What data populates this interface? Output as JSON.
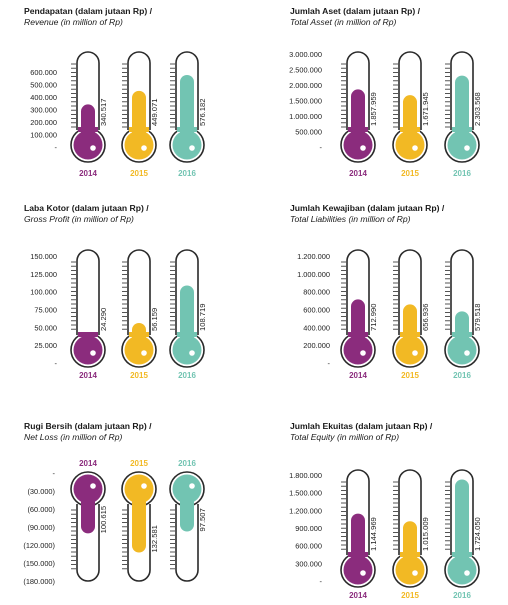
{
  "colors": {
    "2014": "#8b2c7d",
    "2015": "#f2b924",
    "2016": "#72c4b2",
    "outline": "#2a2a2a"
  },
  "chart_data": [
    {
      "type": "bar",
      "title": "Pendapatan (dalam jutaan Rp) /",
      "subtitle": "Revenue (in million of Rp)",
      "categories": [
        "2014",
        "2015",
        "2016"
      ],
      "values": [
        340517,
        449071,
        576182
      ],
      "value_labels": [
        "340.517",
        "449.071",
        "576.182"
      ],
      "yticks": [
        "600.000",
        "500.000",
        "400.000",
        "300.000",
        "200.000",
        "100.000",
        "-"
      ],
      "ylim": [
        0,
        600000
      ]
    },
    {
      "type": "bar",
      "title": "Jumlah Aset (dalam jutaan Rp) /",
      "subtitle": "Total Asset (in million of Rp)",
      "categories": [
        "2014",
        "2015",
        "2016"
      ],
      "values": [
        1857959,
        1671945,
        2303568
      ],
      "value_labels": [
        "1.857.959",
        "1.671.945",
        "2.303.568"
      ],
      "yticks": [
        "3.000.000",
        "2.500.000",
        "2.000.000",
        "1.500.000",
        "1.000.000",
        "500.000",
        "-"
      ],
      "ylim": [
        0,
        3000000
      ]
    },
    {
      "type": "bar",
      "title": "Laba Kotor (dalam jutaan Rp) /",
      "subtitle": "Gross Profit (in million of Rp)",
      "categories": [
        "2014",
        "2015",
        "2016"
      ],
      "values": [
        24290,
        56159,
        108719
      ],
      "value_labels": [
        "24.290",
        "56.159",
        "108.719"
      ],
      "yticks": [
        "150.000",
        "125.000",
        "100.000",
        "75.000",
        "50.000",
        "25.000",
        "-"
      ],
      "ylim": [
        0,
        150000
      ]
    },
    {
      "type": "bar",
      "title": "Jumlah Kewajiban (dalam jutaan Rp) /",
      "subtitle": "Total Liabilities (in million of Rp)",
      "categories": [
        "2014",
        "2015",
        "2016"
      ],
      "values": [
        712990,
        656936,
        579518
      ],
      "value_labels": [
        "712.990",
        "656.936",
        "579.518"
      ],
      "yticks": [
        "1.200.000",
        "1.000.000",
        "800.000",
        "600.000",
        "400.000",
        "200.000",
        "-"
      ],
      "ylim": [
        0,
        1200000
      ]
    },
    {
      "type": "bar",
      "title": "Rugi Bersih (dalam jutaan Rp) /",
      "subtitle": "Net Loss (in million of Rp)",
      "categories": [
        "2014",
        "2015",
        "2016"
      ],
      "values": [
        -100615,
        -132581,
        -97507
      ],
      "value_labels": [
        "100.615",
        "132.581",
        "97.507"
      ],
      "yticks": [
        "-",
        "(30.000)",
        "(60.000)",
        "(90.000)",
        "(120.000)",
        "(150.000)",
        "(180.000)"
      ],
      "ylim": [
        -180000,
        0
      ]
    },
    {
      "type": "bar",
      "title": "Jumlah Ekuitas (dalam jutaan Rp) /",
      "subtitle": "Total Equity (in million of Rp)",
      "categories": [
        "2014",
        "2015",
        "2016"
      ],
      "values": [
        1144969,
        1015009,
        1724050
      ],
      "value_labels": [
        "1.144.969",
        "1.015.009",
        "1.724.050"
      ],
      "yticks": [
        "1.800.000",
        "1.500.000",
        "1.200.000",
        "900.000",
        "600.000",
        "300.000",
        "-"
      ],
      "ylim": [
        0,
        1800000
      ]
    }
  ]
}
